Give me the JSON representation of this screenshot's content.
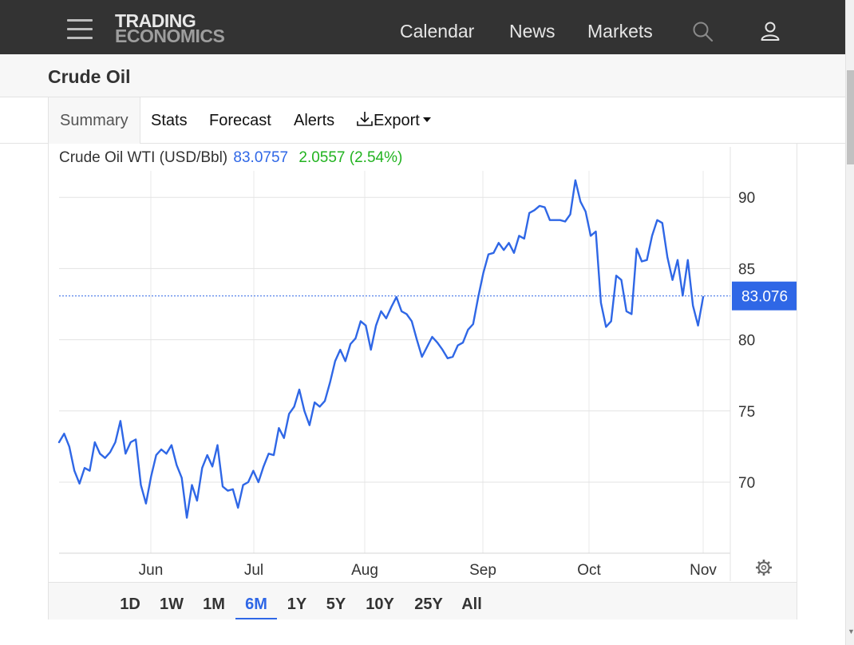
{
  "nav": {
    "logo_line1": "TRADING",
    "logo_line2": "ECONOMICS",
    "links": [
      "Calendar",
      "News",
      "Markets"
    ],
    "search_icon": "search-icon",
    "user_icon": "user-icon",
    "menu_icon": "hamburger-menu-icon"
  },
  "page": {
    "title": "Crude Oil"
  },
  "tabs": {
    "summary": "Summary",
    "stats": "Stats",
    "forecast": "Forecast",
    "alerts": "Alerts",
    "export": "Export"
  },
  "legend": {
    "name": "Crude Oil WTI (USD/Bbl)",
    "last": "83.0757",
    "change": "2.0557 (2.54%)"
  },
  "ranges": {
    "items": [
      "1D",
      "1W",
      "1M",
      "6M",
      "1Y",
      "5Y",
      "10Y",
      "25Y",
      "All"
    ],
    "active": "6M"
  },
  "colors": {
    "line": "#2f67e6",
    "change_positive": "#22b320",
    "nav_bg": "#333333",
    "current_tag": "#2f67e6"
  },
  "chart_data": {
    "type": "line",
    "title": "",
    "xlabel": "",
    "ylabel": "",
    "x_tick_labels": [
      "Jun",
      "Jul",
      "Aug",
      "Sep",
      "Oct",
      "Nov"
    ],
    "y_ticks": [
      70,
      75,
      80,
      85,
      90
    ],
    "ylim": [
      65,
      92.5
    ],
    "grid": true,
    "current_value_label": "83.076",
    "current_value": 83.076,
    "series": [
      {
        "values": [
          72.8,
          73.4,
          72.5,
          70.8,
          69.9,
          71.0,
          70.8,
          72.8,
          72.0,
          71.7,
          72.1,
          72.8,
          74.3,
          72.0,
          72.8,
          73.0,
          69.8,
          68.5,
          70.4,
          71.9,
          72.3,
          72.0,
          72.6,
          71.2,
          70.3,
          67.5,
          69.8,
          68.7,
          71.0,
          71.9,
          71.1,
          72.6,
          69.7,
          69.4,
          69.5,
          68.2,
          69.8,
          70.0,
          70.8,
          70.0,
          71.1,
          72.0,
          71.9,
          73.8,
          73.1,
          74.8,
          75.3,
          76.5,
          75.0,
          74.0,
          75.6,
          75.3,
          75.7,
          77.0,
          78.5,
          79.3,
          78.5,
          79.7,
          80.1,
          81.3,
          81.0,
          79.3,
          81.0,
          82.0,
          81.5,
          82.3,
          83.0,
          82.0,
          81.8,
          81.3,
          80.0,
          78.8,
          79.5,
          80.2,
          79.8,
          79.3,
          78.7,
          78.8,
          79.6,
          79.8,
          80.7,
          81.1,
          83.0,
          84.7,
          86.0,
          86.1,
          86.8,
          86.3,
          86.8,
          86.1,
          87.3,
          87.1,
          88.9,
          89.1,
          89.4,
          89.3,
          88.4,
          88.4,
          88.4,
          88.3,
          88.8,
          91.2,
          89.7,
          89.0,
          87.3,
          87.6,
          82.6,
          80.9,
          81.3,
          84.5,
          84.2,
          82.0,
          81.8,
          86.4,
          85.5,
          85.6,
          87.3,
          88.4,
          88.2,
          85.8,
          84.2,
          85.6,
          83.1,
          85.6,
          82.4,
          81.0,
          83.0
        ]
      }
    ]
  }
}
